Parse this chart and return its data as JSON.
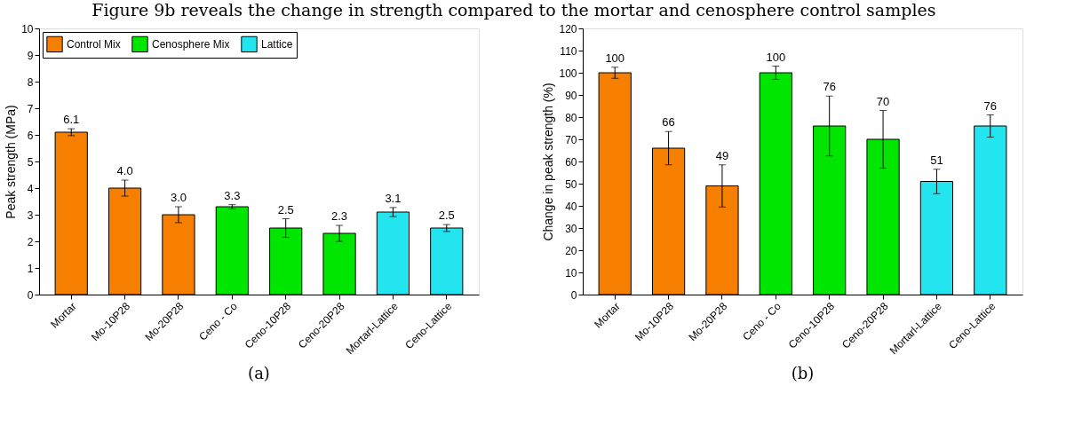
{
  "chart_data": [
    {
      "type": "bar",
      "title": "Figure 9b reveals the change in strength compared to the mortar and cenosphere control samples",
      "ylabel": "Peak strength (MPa)",
      "annotations": [
        "(a)"
      ],
      "categories": [
        "Mortar",
        "Mo-10P28",
        "Mo-20P28",
        "Ceno - Co",
        "Ceno-10P28",
        "Ceno-20P28",
        "Mortarl-Lattice",
        "Ceno-Lattice"
      ],
      "series": [
        {
          "name": "Control Mix",
          "color": "#f77f00",
          "values": [
            6.1,
            4.0,
            3.0,
            null,
            null,
            null,
            null,
            null
          ],
          "errors": [
            0.13,
            0.3,
            0.3,
            null,
            null,
            null,
            null,
            null
          ],
          "value_labels": [
            "6.1",
            "4.0",
            "3.0",
            null,
            null,
            null,
            null,
            null
          ]
        },
        {
          "name": "Cenosphere Mix",
          "color": "#00e600",
          "values": [
            null,
            null,
            null,
            3.3,
            2.5,
            2.3,
            null,
            null
          ],
          "errors": [
            null,
            null,
            null,
            0.08,
            0.35,
            0.3,
            null,
            null
          ],
          "value_labels": [
            null,
            null,
            null,
            "3.3",
            "2.5",
            "2.3",
            null,
            null
          ]
        },
        {
          "name": "Lattice",
          "color": "#22e5f0",
          "values": [
            null,
            null,
            null,
            null,
            null,
            null,
            3.1,
            2.5
          ],
          "errors": [
            null,
            null,
            null,
            null,
            null,
            null,
            0.17,
            0.13
          ],
          "value_labels": [
            null,
            null,
            null,
            null,
            null,
            null,
            "3.1",
            "2.5"
          ]
        }
      ],
      "ylim": [
        0,
        10
      ],
      "yticks": [
        0,
        1,
        2,
        3,
        4,
        5,
        6,
        7,
        8,
        9,
        10
      ],
      "grid": false,
      "legend": "top left"
    },
    {
      "type": "bar",
      "ylabel": "Change in peak strength (%)",
      "annotations": [
        "(b)"
      ],
      "categories": [
        "Mortar",
        "Mo-10P28",
        "Mo-20P28",
        "Ceno - Co",
        "Ceno-10P28",
        "Ceno-20P28",
        "Mortarl-Lattice",
        "Ceno-Lattice"
      ],
      "series": [
        {
          "name": "Control Mix",
          "color": "#f77f00",
          "values": [
            100,
            66,
            49,
            null,
            null,
            null,
            null,
            null
          ],
          "errors": [
            2.5,
            7.5,
            9.5,
            null,
            null,
            null,
            null,
            null
          ],
          "value_labels": [
            "100",
            "66",
            "49",
            null,
            null,
            null,
            null,
            null
          ]
        },
        {
          "name": "Cenosphere Mix",
          "color": "#00e600",
          "values": [
            null,
            null,
            null,
            100,
            76,
            70,
            null,
            null
          ],
          "errors": [
            null,
            null,
            null,
            3,
            13.5,
            13,
            null,
            null
          ],
          "value_labels": [
            null,
            null,
            null,
            "100",
            "76",
            "70",
            null,
            null
          ]
        },
        {
          "name": "Lattice",
          "color": "#22e5f0",
          "values": [
            null,
            null,
            null,
            null,
            null,
            null,
            51,
            76
          ],
          "errors": [
            null,
            null,
            null,
            null,
            null,
            null,
            5.5,
            5
          ],
          "value_labels": [
            null,
            null,
            null,
            null,
            null,
            null,
            "51",
            "76"
          ]
        }
      ],
      "ylim": [
        0,
        120
      ],
      "yticks": [
        0,
        10,
        20,
        30,
        40,
        50,
        60,
        70,
        80,
        90,
        100,
        110,
        120
      ],
      "grid": false,
      "legend": "top left"
    }
  ]
}
